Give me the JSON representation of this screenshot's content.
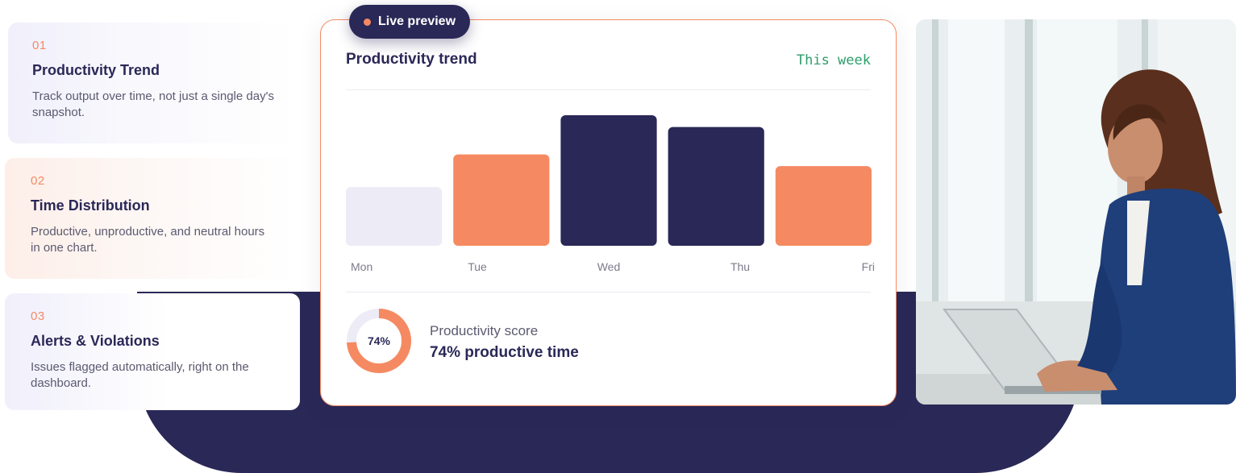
{
  "features": [
    {
      "num": "01",
      "title": "Productivity Trend",
      "desc": "Track output over time, not just a single day's snapshot."
    },
    {
      "num": "02",
      "title": "Time Distribution",
      "desc": "Productive, unproductive, and neutral hours in one chart."
    },
    {
      "num": "03",
      "title": "Alerts & Violations",
      "desc": "Issues flagged automatically, right on the dashboard."
    }
  ],
  "preview": {
    "badge": "Live preview",
    "title": "Productivity trend",
    "range": "This week",
    "score_label": "Productivity score",
    "score_value": "74% productive time",
    "donut_label": "74%",
    "donut_fraction": 0.74
  },
  "chart_data": {
    "type": "bar",
    "categories": [
      "Mon",
      "Tue",
      "Wed",
      "Thu",
      "Fri"
    ],
    "values": [
      45,
      70,
      100,
      91,
      61
    ],
    "colors": [
      "#edebf6",
      "#f58a62",
      "#2a2857",
      "#2a2857",
      "#f58a62"
    ],
    "title": "Productivity trend",
    "xlabel": "",
    "ylabel": "",
    "ylim": [
      0,
      100
    ],
    "grid": false
  },
  "colors": {
    "navy": "#2a2857",
    "accent": "#f58a62",
    "green": "#2e9e6b",
    "light": "#edebf6"
  }
}
